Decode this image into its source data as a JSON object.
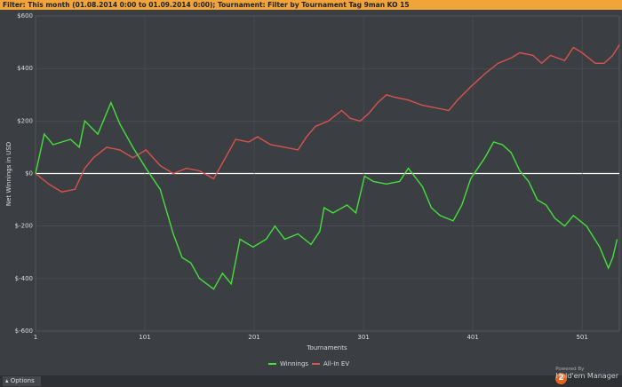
{
  "filter_bar": "Filter: This month (01.08.2014 0:00 to 01.09.2014 0:00);  Tournament: Filter by Tournament Tag  9man KO 15",
  "options": "Options",
  "branding": {
    "powered_by": "Powered By",
    "product": "Hold'em Manager",
    "logo": "2"
  },
  "chart_data": {
    "type": "line",
    "xlabel": "Tournaments",
    "ylabel": "Net Winnings in USD",
    "xlim": [
      1,
      535
    ],
    "xticks": [
      1,
      101,
      201,
      301,
      401,
      501
    ],
    "ylim": [
      -600,
      600
    ],
    "yticks": [
      {
        "value": 600,
        "label": "$600"
      },
      {
        "value": 400,
        "label": "$400"
      },
      {
        "value": 200,
        "label": "$200"
      },
      {
        "value": 0,
        "label": "$0"
      },
      {
        "value": -200,
        "label": "$-200"
      },
      {
        "value": -400,
        "label": "$-400"
      },
      {
        "value": -600,
        "label": "$-600"
      }
    ],
    "grid": true,
    "series": [
      {
        "name": "Winnings",
        "color": "#45e03c",
        "x": [
          1,
          9,
          17,
          33,
          41,
          46,
          58,
          70,
          78,
          90,
          102,
          115,
          127,
          135,
          143,
          151,
          164,
          172,
          180,
          188,
          200,
          212,
          220,
          229,
          241,
          253,
          261,
          265,
          273,
          286,
          294,
          302,
          310,
          322,
          334,
          342,
          355,
          363,
          371,
          383,
          391,
          399,
          412,
          420,
          428,
          436,
          444,
          452,
          460,
          468,
          476,
          485,
          493,
          505,
          517,
          525,
          529,
          533
        ],
        "values": [
          0,
          150,
          110,
          130,
          100,
          200,
          150,
          270,
          190,
          100,
          20,
          -60,
          -230,
          -320,
          -340,
          -400,
          -440,
          -380,
          -420,
          -250,
          -280,
          -250,
          -200,
          -250,
          -230,
          -270,
          -220,
          -130,
          -150,
          -120,
          -150,
          -10,
          -30,
          -40,
          -30,
          20,
          -50,
          -130,
          -160,
          -180,
          -120,
          -20,
          60,
          120,
          110,
          80,
          10,
          -30,
          -100,
          -120,
          -170,
          -200,
          -160,
          -200,
          -280,
          -360,
          -320,
          -250
        ]
      },
      {
        "name": "All-In EV",
        "color": "#d9534f",
        "x": [
          1,
          13,
          25,
          37,
          46,
          54,
          66,
          78,
          90,
          102,
          115,
          127,
          139,
          151,
          164,
          176,
          184,
          196,
          204,
          216,
          229,
          241,
          249,
          257,
          269,
          281,
          289,
          298,
          306,
          314,
          322,
          330,
          342,
          355,
          367,
          379,
          387,
          399,
          412,
          424,
          436,
          444,
          456,
          464,
          472,
          485,
          493,
          501,
          513,
          521,
          529,
          535
        ],
        "values": [
          0,
          -40,
          -70,
          -60,
          20,
          60,
          100,
          90,
          60,
          90,
          30,
          0,
          20,
          10,
          -20,
          70,
          130,
          120,
          140,
          110,
          100,
          90,
          140,
          180,
          200,
          240,
          210,
          200,
          230,
          270,
          300,
          290,
          280,
          260,
          250,
          240,
          280,
          330,
          380,
          420,
          440,
          460,
          450,
          420,
          450,
          430,
          480,
          460,
          420,
          420,
          450,
          490
        ]
      }
    ]
  }
}
